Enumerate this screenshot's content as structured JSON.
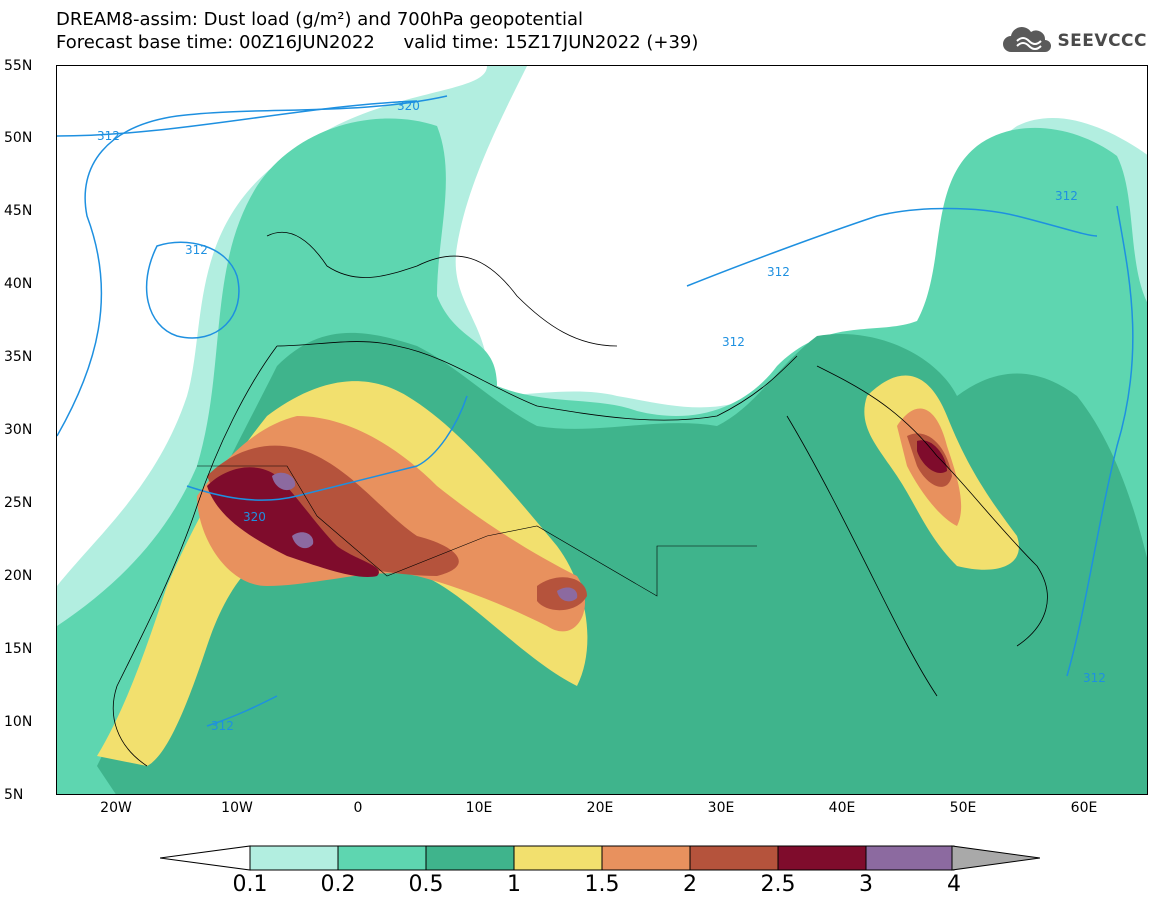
{
  "header": {
    "line1": "DREAM8-assim: Dust load (g/m²) and 700hPa geopotential",
    "line2": "Forecast base time: 00Z16JUN2022     valid time: 15Z17JUN2022 (+39)"
  },
  "logo": {
    "text": "SEEVCCC",
    "icon": "cloud-icon"
  },
  "axes": {
    "lat_labels": [
      "55N",
      "50N",
      "45N",
      "40N",
      "35N",
      "30N",
      "25N",
      "20N",
      "15N",
      "10N",
      "5N"
    ],
    "lon_labels": [
      "20W",
      "10W",
      "0",
      "10E",
      "20E",
      "30E",
      "40E",
      "50E",
      "60E"
    ]
  },
  "contours": {
    "labels": [
      "312",
      "320",
      "312",
      "312",
      "320",
      "312",
      "312",
      "312",
      "312"
    ]
  },
  "colorbar": {
    "levels": [
      "0.1",
      "0.2",
      "0.5",
      "1",
      "1.5",
      "2",
      "2.5",
      "3",
      "4"
    ],
    "colors": [
      "#b2eee0",
      "#5ed6b0",
      "#3fb48c",
      "#f2e06e",
      "#e8915e",
      "#b5533c",
      "#7f0c2c",
      "#8c6aa0",
      "#a9a9a9"
    ],
    "under_color": "#ffffff"
  }
}
